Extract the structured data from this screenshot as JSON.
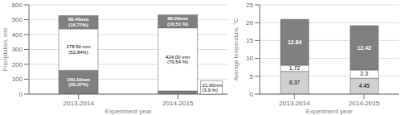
{
  "chart_data": [
    {
      "type": "bar",
      "stacked": true,
      "data_labels": true,
      "grid": true,
      "categories": [
        "2013-2014",
        "2014-2015"
      ],
      "xlabel": "Experiment year",
      "ylabel": "Precipitation, mm",
      "ylim": [
        0,
        600
      ],
      "yticks": [
        0,
        100,
        200,
        300,
        400,
        500,
        600
      ],
      "series": [
        {
          "color": "#808080",
          "values": [
            160.1,
            21.0
          ],
          "value_labels": [
            "160.10mm\n(30.37%)",
            "21.00mm\n(3.9 %)"
          ]
        },
        {
          "color": "#ffffff",
          "values": [
            278.5,
            424.0
          ],
          "value_labels": [
            "278.50 mm\n(52.84%)",
            "424.00 mm\n(79.54 %)"
          ]
        },
        {
          "color": "#808080",
          "values": [
            88.4,
            88.0
          ],
          "value_labels": [
            "88.40mm\n(16.77%)",
            "88.00mm\n(16.51 %)"
          ]
        }
      ]
    },
    {
      "type": "bar",
      "stacked": true,
      "data_labels": true,
      "grid": true,
      "categories": [
        "2013-2014",
        "2014-2015"
      ],
      "xlabel": "Experiment year",
      "ylabel": "Average temperature, °C",
      "ylim": [
        0,
        25
      ],
      "yticks": [
        0,
        5,
        10,
        15,
        20,
        25
      ],
      "series": [
        {
          "color": "#d0d0d0",
          "values": [
            6.37,
            4.45
          ]
        },
        {
          "color": "#ffffff",
          "values": [
            1.72,
            2.3
          ]
        },
        {
          "color": "#808080",
          "values": [
            12.84,
            12.42
          ]
        }
      ]
    }
  ]
}
